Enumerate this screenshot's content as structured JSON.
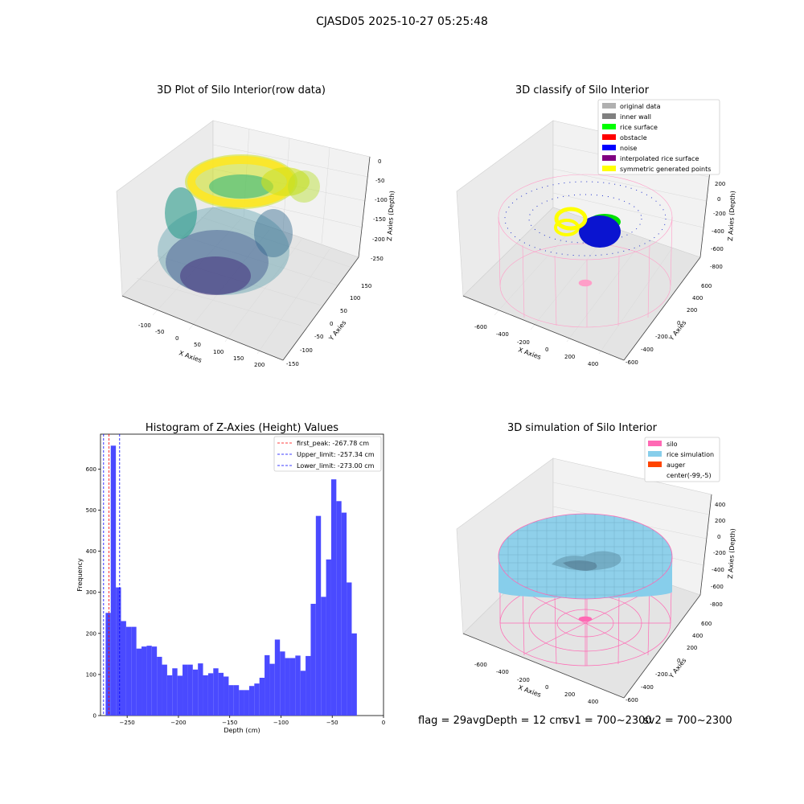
{
  "figure": {
    "suptitle": "CJASD05 2025-10-27 05:25:48"
  },
  "panels": {
    "raw": {
      "title": "3D Plot of Silo Interior(row data)",
      "xlabel": "X Axies",
      "ylabel": "Y Axies",
      "zlabel": "Z Axies (Depth)",
      "xticks": [
        "-100",
        "-50",
        "0",
        "50",
        "100",
        "150",
        "200"
      ],
      "yticks": [
        "-150",
        "-100",
        "-50",
        "0",
        "50",
        "100",
        "150"
      ],
      "zticks": [
        "0",
        "-50",
        "-100",
        "-150",
        "-200",
        "-250"
      ]
    },
    "classify": {
      "title": "3D classify of Silo Interior",
      "xlabel": "X Axies",
      "ylabel": "Y Axies",
      "zlabel": "Z Axies (Depth)",
      "xticks": [
        "-600",
        "-400",
        "-200",
        "0",
        "200",
        "400"
      ],
      "yticks": [
        "-600",
        "-400",
        "-200",
        "0",
        "200",
        "400",
        "600"
      ],
      "zticks": [
        "200",
        "0",
        "-200",
        "-400",
        "-600",
        "-800"
      ],
      "legend": [
        {
          "label": "original data",
          "color": "#b0b0b0"
        },
        {
          "label": "inner wall",
          "color": "#808080"
        },
        {
          "label": "rice surface",
          "color": "#00ff00"
        },
        {
          "label": "obstacle",
          "color": "#ff0000"
        },
        {
          "label": "noise",
          "color": "#0000ff"
        },
        {
          "label": "interpolated rice surface",
          "color": "#800080"
        },
        {
          "label": "symmetric generated points",
          "color": "#ffff00"
        }
      ]
    },
    "simulation": {
      "title": "3D simulation of Silo Interior",
      "xlabel": "X Axies",
      "ylabel": "Y Axies",
      "zlabel": "Z Axies (Depth)",
      "xticks": [
        "-600",
        "-400",
        "-200",
        "0",
        "200",
        "400"
      ],
      "yticks": [
        "-600",
        "-400",
        "-200",
        "0",
        "200",
        "400",
        "600"
      ],
      "zticks": [
        "400",
        "200",
        "0",
        "-200",
        "-400",
        "-600",
        "-800"
      ],
      "legend": [
        {
          "label": "silo",
          "color": "#ff69b4"
        },
        {
          "label": "rice simulation",
          "color": "#87ceeb"
        },
        {
          "label": "auger",
          "color": "#ff4500"
        },
        {
          "label": "center(-99,-5)",
          "color": "#ffffff"
        }
      ]
    }
  },
  "chart_data": {
    "type": "bar",
    "title": "Histogram of Z-Axies (Height) Values",
    "xlabel": "Depth (cm)",
    "ylabel": "Frequency",
    "xlim": [
      -276,
      0
    ],
    "ylim": [
      0,
      685
    ],
    "bar_color": "#4a4aff",
    "xticks": [
      "−250",
      "−200",
      "−150",
      "−100",
      "−50",
      "0"
    ],
    "yticks": [
      "0",
      "100",
      "200",
      "300",
      "400",
      "500",
      "600"
    ],
    "bins_start": -271,
    "bin_width": 5,
    "values": [
      250,
      657,
      312,
      230,
      216,
      216,
      163,
      168,
      170,
      168,
      143,
      124,
      98,
      115,
      97,
      124,
      124,
      112,
      127,
      98,
      103,
      115,
      104,
      95,
      74,
      74,
      62,
      62,
      72,
      78,
      92,
      147,
      126,
      185,
      156,
      140,
      140,
      146,
      109,
      145,
      272,
      486,
      289,
      380,
      575,
      522,
      494,
      324,
      200
    ],
    "vlines": [
      {
        "label": "first_peak: -267.78 cm",
        "value": -267.78,
        "color": "#ff0000"
      },
      {
        "label": "Upper_limit: -257.34 cm",
        "value": -257.34,
        "color": "#0000ff"
      },
      {
        "label": "Lower_limit: -273.00 cm",
        "value": -273.0,
        "color": "#0000ff"
      }
    ]
  },
  "footer": {
    "flag": "flag = 29",
    "avg_depth": "avgDepth = 12 cm",
    "sv1": "sv1 = 700~2300",
    "sv2": "sv2 = 700~2300"
  }
}
